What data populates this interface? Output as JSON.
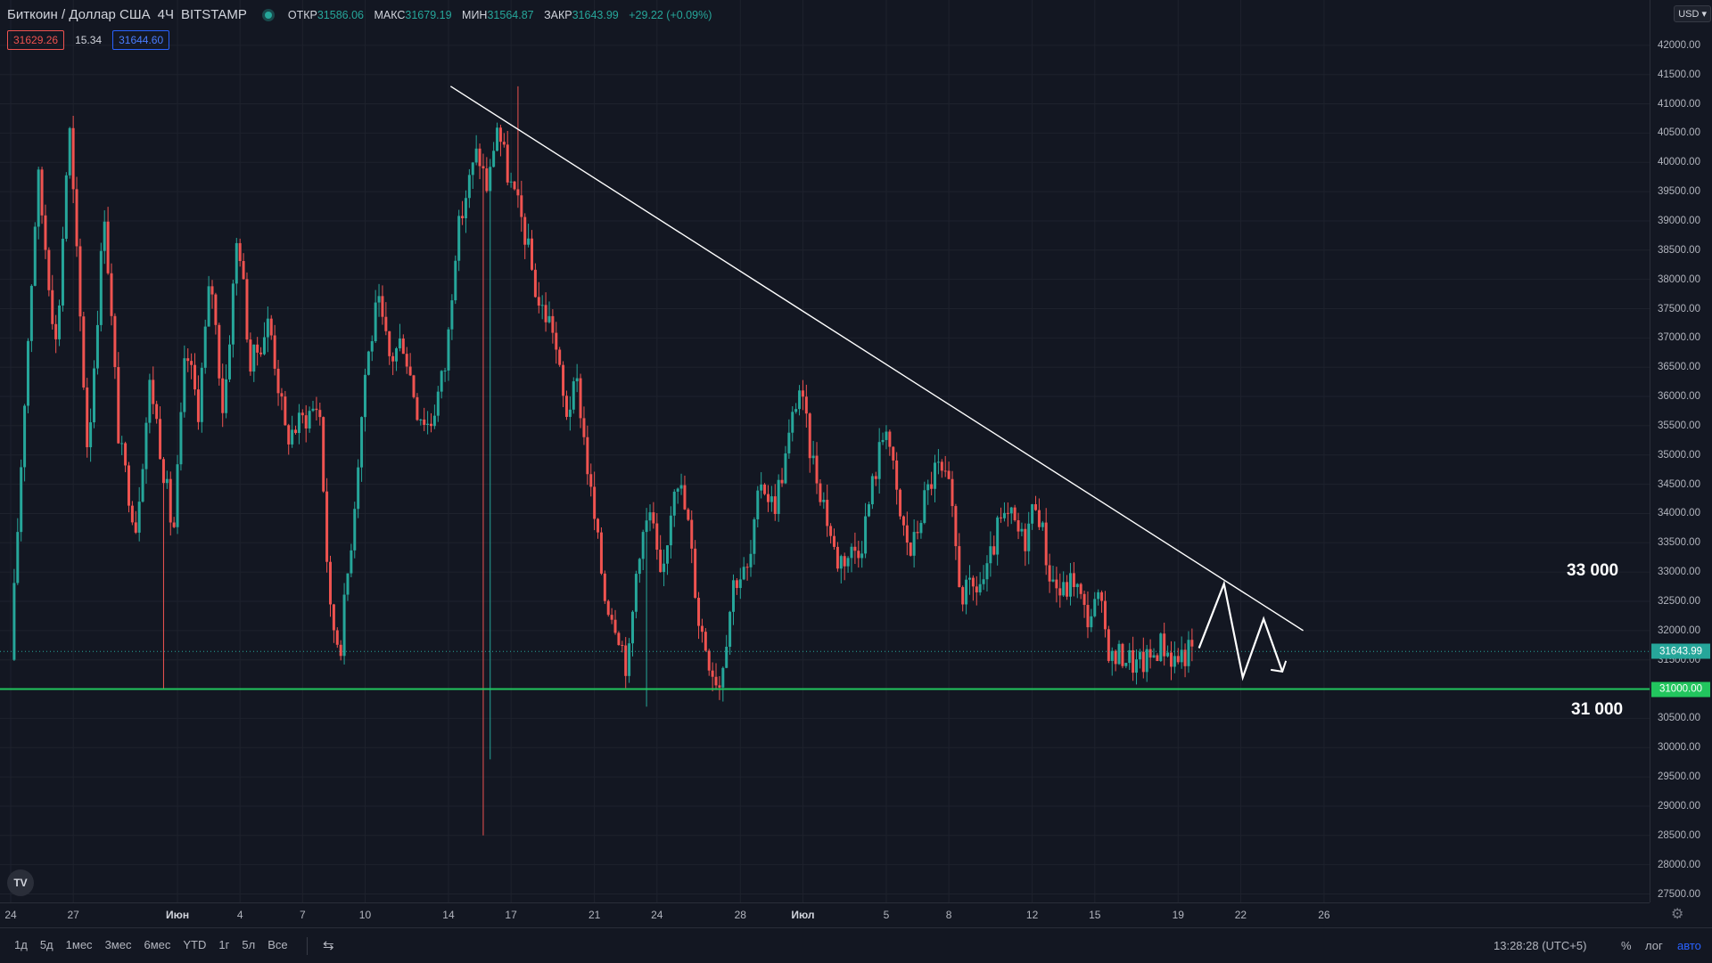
{
  "header": {
    "symbol": "Биткоин / Доллар США",
    "interval": "4Ч",
    "exchange": "BITSTAMP",
    "open_label": "ОТКР",
    "open": "31586.06",
    "high_label": "МАКС",
    "high": "31679.19",
    "low_label": "МИН",
    "low": "31564.87",
    "close_label": "ЗАКР",
    "close": "31643.99",
    "change": "+29.22 (+0.09%)"
  },
  "quote": {
    "bid": "31629.26",
    "spread": "15.34",
    "ask": "31644.60"
  },
  "currency_button": "USD",
  "colors": {
    "up": "#26a69a",
    "down": "#ef5350",
    "background": "#131722",
    "support_line": "#22c55e",
    "drawing": "#ffffff",
    "last_price_tag": "#26a69a"
  },
  "chart_data": {
    "type": "candlestick",
    "instrument": "BTC/USD",
    "timeframe": "4H",
    "ylim": [
      27500,
      42500
    ],
    "y_ticks": [
      27500,
      28000,
      28500,
      29000,
      29500,
      30000,
      30500,
      31000,
      31500,
      32000,
      32500,
      33000,
      33500,
      34000,
      34500,
      35000,
      35500,
      36000,
      36500,
      37000,
      37500,
      38000,
      38500,
      39000,
      39500,
      40000,
      40500,
      41000,
      41500,
      42000
    ],
    "x_ticks": [
      {
        "label": "24",
        "day": 0
      },
      {
        "label": "27",
        "day": 3
      },
      {
        "label": "Июн",
        "day": 8,
        "bold": true
      },
      {
        "label": "4",
        "day": 11
      },
      {
        "label": "7",
        "day": 14
      },
      {
        "label": "10",
        "day": 17
      },
      {
        "label": "14",
        "day": 21
      },
      {
        "label": "17",
        "day": 24
      },
      {
        "label": "21",
        "day": 28
      },
      {
        "label": "24",
        "day": 31
      },
      {
        "label": "28",
        "day": 35
      },
      {
        "label": "Июл",
        "day": 38,
        "bold": true
      },
      {
        "label": "5",
        "day": 42
      },
      {
        "label": "8",
        "day": 45
      },
      {
        "label": "12",
        "day": 49
      },
      {
        "label": "15",
        "day": 52
      },
      {
        "label": "19",
        "day": 56
      },
      {
        "label": "22",
        "day": 59
      },
      {
        "label": "26",
        "day": 63
      }
    ],
    "anchors": [
      [
        0,
        31500
      ],
      [
        0.7,
        36200
      ],
      [
        1.3,
        39800
      ],
      [
        2.2,
        36800
      ],
      [
        2.8,
        40700
      ],
      [
        3.7,
        35000
      ],
      [
        4.5,
        39200
      ],
      [
        5.2,
        35200
      ],
      [
        6.0,
        33800
      ],
      [
        6.7,
        36300
      ],
      [
        7.4,
        34600
      ],
      [
        7.8,
        33600
      ],
      [
        8.4,
        36800
      ],
      [
        9.0,
        35800
      ],
      [
        9.6,
        38100
      ],
      [
        10.2,
        35700
      ],
      [
        10.9,
        38900
      ],
      [
        11.5,
        36500
      ],
      [
        12.4,
        37300
      ],
      [
        13.2,
        35300
      ],
      [
        14.0,
        35600
      ],
      [
        14.8,
        35900
      ],
      [
        15.3,
        32300
      ],
      [
        15.8,
        31700
      ],
      [
        16.4,
        33800
      ],
      [
        17.0,
        36400
      ],
      [
        17.6,
        37600
      ],
      [
        18.2,
        36600
      ],
      [
        18.8,
        37000
      ],
      [
        19.5,
        35800
      ],
      [
        20.1,
        35500
      ],
      [
        20.9,
        36600
      ],
      [
        21.3,
        38500
      ],
      [
        21.8,
        39400
      ],
      [
        22.4,
        40200
      ],
      [
        22.9,
        39500
      ],
      [
        23.3,
        40700
      ],
      [
        23.9,
        39700
      ],
      [
        24.6,
        38900
      ],
      [
        25.3,
        37600
      ],
      [
        26.0,
        37200
      ],
      [
        26.6,
        35700
      ],
      [
        27.2,
        36200
      ],
      [
        27.8,
        34400
      ],
      [
        28.5,
        32600
      ],
      [
        29.1,
        32100
      ],
      [
        29.6,
        31300
      ],
      [
        30.1,
        33400
      ],
      [
        30.7,
        34000
      ],
      [
        31.2,
        32700
      ],
      [
        31.9,
        34800
      ],
      [
        32.5,
        33800
      ],
      [
        33.0,
        32200
      ],
      [
        33.6,
        31400
      ],
      [
        34.0,
        31100
      ],
      [
        34.7,
        32900
      ],
      [
        35.4,
        33000
      ],
      [
        36.0,
        34600
      ],
      [
        36.6,
        34100
      ],
      [
        37.2,
        35000
      ],
      [
        37.8,
        36200
      ],
      [
        38.4,
        35000
      ],
      [
        39.0,
        34200
      ],
      [
        39.6,
        33200
      ],
      [
        40.2,
        33300
      ],
      [
        40.8,
        33500
      ],
      [
        41.4,
        34600
      ],
      [
        42.0,
        35600
      ],
      [
        42.6,
        34000
      ],
      [
        43.2,
        33300
      ],
      [
        43.8,
        34200
      ],
      [
        44.4,
        34800
      ],
      [
        45.0,
        34400
      ],
      [
        45.6,
        32600
      ],
      [
        46.2,
        32700
      ],
      [
        46.8,
        32900
      ],
      [
        47.4,
        33800
      ],
      [
        48.0,
        33900
      ],
      [
        48.6,
        33500
      ],
      [
        49.2,
        34300
      ],
      [
        49.8,
        33000
      ],
      [
        50.4,
        32600
      ],
      [
        51.0,
        32900
      ],
      [
        51.6,
        32200
      ],
      [
        52.2,
        32500
      ],
      [
        52.8,
        31500
      ],
      [
        53.4,
        31600
      ],
      [
        54.0,
        31400
      ],
      [
        54.6,
        31500
      ],
      [
        55.2,
        31800
      ],
      [
        55.8,
        31500
      ],
      [
        56.2,
        31600
      ],
      [
        56.6,
        31644
      ]
    ],
    "levels": [
      {
        "name": "support",
        "price": 31000,
        "label": "31 000",
        "color": "#22c55e"
      },
      {
        "name": "resistance-target",
        "price": 33000,
        "label": "33 000"
      }
    ],
    "trendline": {
      "from": [
        21.1,
        41300
      ],
      "to": [
        62.0,
        32000
      ]
    },
    "projection_path": [
      [
        57.0,
        31700
      ],
      [
        58.2,
        32800
      ],
      [
        59.1,
        31200
      ],
      [
        60.1,
        32200
      ],
      [
        61.0,
        31300
      ]
    ],
    "last_price": 31643.99,
    "last_price_label": "31643.99",
    "support_tag": "31000.00"
  },
  "bottom_bar": {
    "periods": [
      "1д",
      "5д",
      "1мес",
      "3мес",
      "6мес",
      "YTD",
      "1г",
      "5л",
      "Все"
    ],
    "time": "13:28:28 (UTC+5)",
    "percent": "%",
    "log": "лог",
    "auto": "авто"
  },
  "logo_text": "TV"
}
